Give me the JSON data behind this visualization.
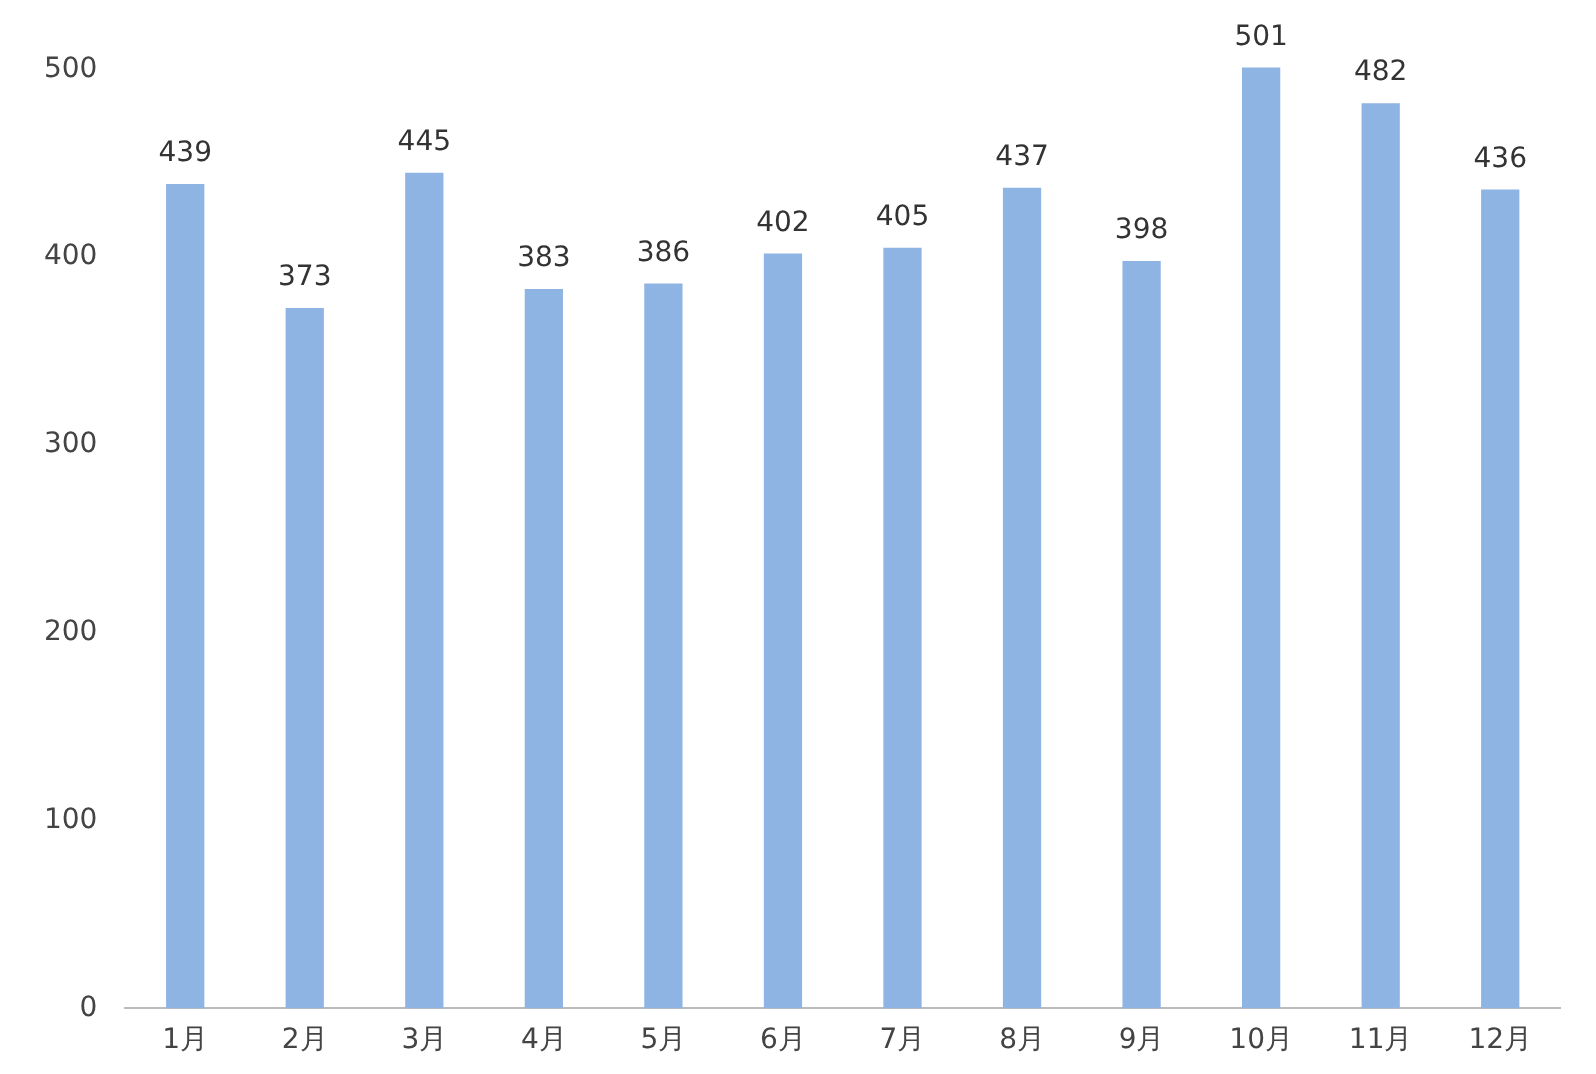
{
  "chart_data": {
    "type": "bar",
    "categories": [
      "1月",
      "2月",
      "3月",
      "4月",
      "5月",
      "6月",
      "7月",
      "8月",
      "9月",
      "10月",
      "11月",
      "12月"
    ],
    "values": [
      439,
      373,
      445,
      383,
      386,
      402,
      405,
      437,
      398,
      501,
      482,
      436
    ],
    "color": "#8eb4e3",
    "ylim": [
      0,
      505
    ],
    "yticks": [
      0,
      100,
      200,
      300,
      400,
      500
    ],
    "grid": false,
    "legend": false,
    "data_labels": true
  }
}
